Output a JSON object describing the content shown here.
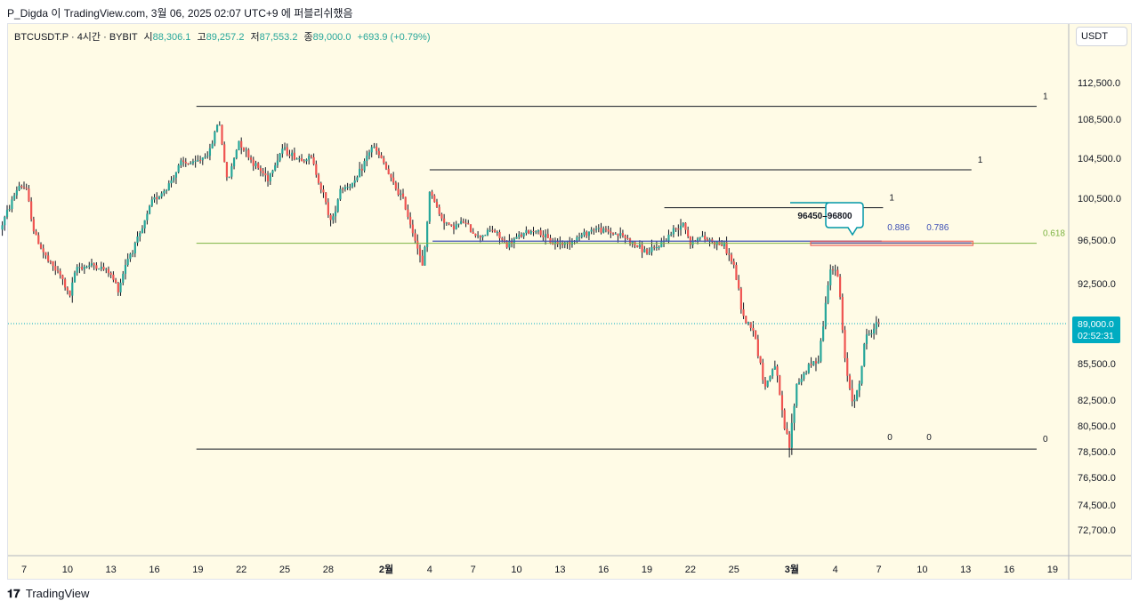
{
  "header": {
    "attribution": "P_Digda 이 TradingView.com, 3월 06, 2025 02:07 UTC+9 에 퍼블리쉬했음"
  },
  "legend": {
    "symbol": "BTCUSDT.P · 4시간 · BYBIT",
    "open_label": "시",
    "open_value": "88,306.1",
    "high_label": "고",
    "high_value": "89,257.2",
    "low_label": "저",
    "low_value": "87,553.2",
    "close_label": "종",
    "close_value": "89,000.0",
    "change": "+693.9 (+0.79%)"
  },
  "currency_button": "USDT",
  "footer": {
    "logo_text": "TradingView"
  },
  "colors": {
    "up": "#26a69a",
    "down": "#ef5350",
    "background": "#fffbe6",
    "fib_line": "#131722",
    "level_618": "#7cb342",
    "level_786": "#3f51b5",
    "zone_border": "#ef5350",
    "callout_border": "#0097a7",
    "price_tag": "#00acc1"
  },
  "chart_data": {
    "type": "candlestick",
    "symbol": "BTCUSDT.P",
    "timeframe": "4시간",
    "exchange": "BYBIT",
    "y_axis": {
      "ticks": [
        "112,500.0",
        "108,500.0",
        "104,500.0",
        "100,500.0",
        "96,500.0",
        "92,500.0",
        "85,500.0",
        "82,500.0",
        "80,500.0",
        "78,500.0",
        "76,500.0",
        "74,500.0",
        "72,700.0"
      ],
      "tick_values": [
        112500,
        108500,
        104500,
        100500,
        96500,
        92500,
        85500,
        82500,
        80500,
        78500,
        76500,
        74500,
        72700
      ]
    },
    "x_axis": {
      "ticks": [
        {
          "label": "7",
          "day": 7
        },
        {
          "label": "10",
          "day": 10
        },
        {
          "label": "13",
          "day": 13
        },
        {
          "label": "16",
          "day": 16
        },
        {
          "label": "19",
          "day": 19
        },
        {
          "label": "22",
          "day": 22
        },
        {
          "label": "25",
          "day": 25
        },
        {
          "label": "28",
          "day": 28
        },
        {
          "label": "2월",
          "day": 32,
          "bold": true
        },
        {
          "label": "4",
          "day": 35
        },
        {
          "label": "7",
          "day": 38
        },
        {
          "label": "10",
          "day": 41
        },
        {
          "label": "13",
          "day": 44
        },
        {
          "label": "16",
          "day": 47
        },
        {
          "label": "19",
          "day": 50
        },
        {
          "label": "22",
          "day": 53
        },
        {
          "label": "25",
          "day": 56
        },
        {
          "label": "3월",
          "day": 60,
          "bold": true
        },
        {
          "label": "4",
          "day": 63
        },
        {
          "label": "7",
          "day": 66
        },
        {
          "label": "10",
          "day": 69
        },
        {
          "label": "13",
          "day": 72
        },
        {
          "label": "16",
          "day": 75
        },
        {
          "label": "19",
          "day": 78
        }
      ]
    },
    "current_price": {
      "value": 89000.0,
      "label": "89,000.0",
      "countdown": "02:52:31"
    },
    "price_path": [
      {
        "day": 5.5,
        "price": 97500
      },
      {
        "day": 6.8,
        "price": 101800
      },
      {
        "day": 7.3,
        "price": 101500
      },
      {
        "day": 7.9,
        "price": 97000
      },
      {
        "day": 8.8,
        "price": 94600
      },
      {
        "day": 9.7,
        "price": 93200
      },
      {
        "day": 10.3,
        "price": 91300
      },
      {
        "day": 10.8,
        "price": 94000
      },
      {
        "day": 12,
        "price": 94200
      },
      {
        "day": 13,
        "price": 93600
      },
      {
        "day": 13.7,
        "price": 92000
      },
      {
        "day": 14.2,
        "price": 94500
      },
      {
        "day": 15.2,
        "price": 97000
      },
      {
        "day": 16,
        "price": 100200
      },
      {
        "day": 17,
        "price": 101500
      },
      {
        "day": 18,
        "price": 104000
      },
      {
        "day": 19,
        "price": 104000
      },
      {
        "day": 20,
        "price": 105200
      },
      {
        "day": 20.6,
        "price": 108600
      },
      {
        "day": 21.2,
        "price": 102000
      },
      {
        "day": 22,
        "price": 106300
      },
      {
        "day": 23,
        "price": 104000
      },
      {
        "day": 24,
        "price": 102500
      },
      {
        "day": 25,
        "price": 105500
      },
      {
        "day": 26,
        "price": 104500
      },
      {
        "day": 27,
        "price": 104500
      },
      {
        "day": 27.8,
        "price": 101000
      },
      {
        "day": 28.4,
        "price": 98000
      },
      {
        "day": 29,
        "price": 101500
      },
      {
        "day": 30,
        "price": 102000
      },
      {
        "day": 31.2,
        "price": 105800
      },
      {
        "day": 32,
        "price": 104000
      },
      {
        "day": 32.6,
        "price": 102000
      },
      {
        "day": 33.3,
        "price": 100500
      },
      {
        "day": 34.2,
        "price": 96500
      },
      {
        "day": 34.7,
        "price": 93800
      },
      {
        "day": 35.2,
        "price": 101500
      },
      {
        "day": 35.8,
        "price": 99000
      },
      {
        "day": 36.6,
        "price": 97700
      },
      {
        "day": 37.5,
        "price": 98200
      },
      {
        "day": 38.5,
        "price": 96800
      },
      {
        "day": 39.5,
        "price": 97500
      },
      {
        "day": 40.5,
        "price": 96000
      },
      {
        "day": 41.5,
        "price": 97000
      },
      {
        "day": 42.5,
        "price": 97500
      },
      {
        "day": 43.5,
        "price": 96300
      },
      {
        "day": 44.5,
        "price": 96200
      },
      {
        "day": 45.5,
        "price": 96800
      },
      {
        "day": 46.5,
        "price": 97600
      },
      {
        "day": 47.5,
        "price": 97300
      },
      {
        "day": 48.5,
        "price": 96900
      },
      {
        "day": 49.5,
        "price": 95900
      },
      {
        "day": 50.3,
        "price": 95300
      },
      {
        "day": 51,
        "price": 96000
      },
      {
        "day": 52,
        "price": 97400
      },
      {
        "day": 52.7,
        "price": 98300
      },
      {
        "day": 53.2,
        "price": 96000
      },
      {
        "day": 53.6,
        "price": 96800
      },
      {
        "day": 54.5,
        "price": 96500
      },
      {
        "day": 55.5,
        "price": 96000
      },
      {
        "day": 56.2,
        "price": 94000
      },
      {
        "day": 56.8,
        "price": 89500
      },
      {
        "day": 57.5,
        "price": 88600
      },
      {
        "day": 58.3,
        "price": 83500
      },
      {
        "day": 59,
        "price": 85500
      },
      {
        "day": 59.6,
        "price": 80600
      },
      {
        "day": 60,
        "price": 78900
      },
      {
        "day": 60.5,
        "price": 83800
      },
      {
        "day": 61.2,
        "price": 85000
      },
      {
        "day": 62,
        "price": 86000
      },
      {
        "day": 62.4,
        "price": 89500
      },
      {
        "day": 62.8,
        "price": 94200
      },
      {
        "day": 63.4,
        "price": 93000
      },
      {
        "day": 63.8,
        "price": 86000
      },
      {
        "day": 64.3,
        "price": 82600
      },
      {
        "day": 64.8,
        "price": 83300
      },
      {
        "day": 65.2,
        "price": 87600
      },
      {
        "day": 65.8,
        "price": 88600
      },
      {
        "day": 66.1,
        "price": 89000
      }
    ],
    "fib_levels": [
      {
        "label": "1",
        "price": 109900,
        "x_start_day": 18.9,
        "x_end_day": 76.9,
        "color": "#131722"
      },
      {
        "label": "1",
        "price": 103350,
        "x_start_day": 35.0,
        "x_end_day": 72.4,
        "color": "#131722"
      },
      {
        "label": "1",
        "price": 99600,
        "x_start_day": 51.2,
        "x_end_day": 66.3,
        "color": "#131722"
      },
      {
        "label": "0.618",
        "price": 96200,
        "x_start_day": 18.9,
        "x_end_day": 76.9,
        "color": "#7cb342"
      },
      {
        "label": "0",
        "price": 78700,
        "x_start_day": 18.9,
        "x_end_day": 76.9,
        "color": "#131722"
      }
    ],
    "level_markers": [
      {
        "label": "0.886",
        "price": 96400,
        "color": "#3f51b5"
      },
      {
        "label": "0.786",
        "price": 96400,
        "color": "#3f51b5"
      },
      {
        "label": "0",
        "price": 78700,
        "color": "#131722"
      },
      {
        "label": "0",
        "price": 78700,
        "color": "#131722"
      }
    ],
    "zone": {
      "low": 96000,
      "high": 96400,
      "x_start_day": 61.3,
      "x_end_day": 72.5
    },
    "callout": {
      "text": "96450–96800"
    }
  }
}
